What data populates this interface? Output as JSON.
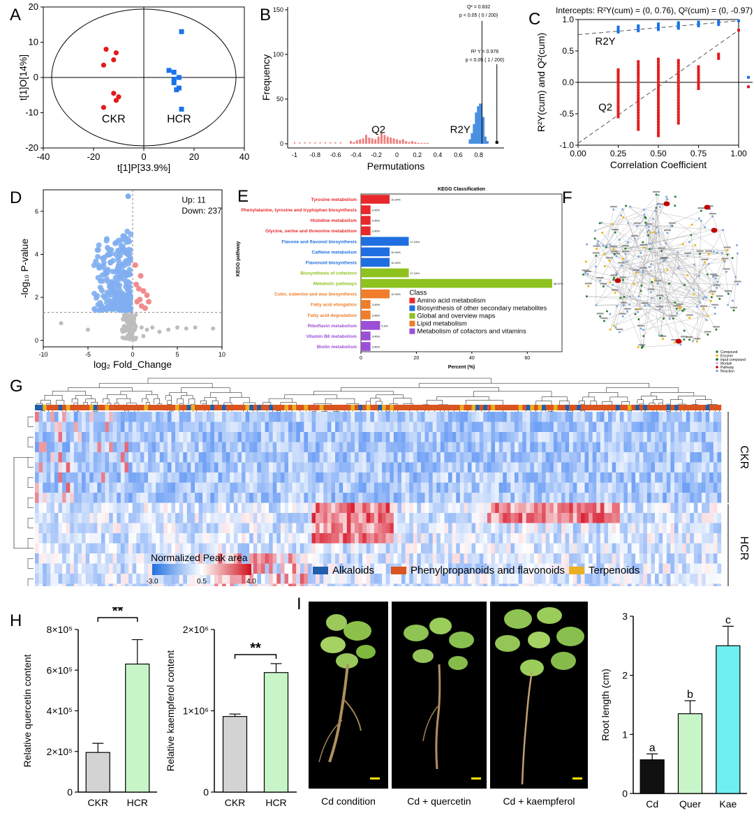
{
  "panels": {
    "A": "A",
    "B": "B",
    "C": "C",
    "D": "D",
    "E": "E",
    "F": "F",
    "G": "G",
    "H": "H",
    "I": "I"
  },
  "chart_data": [
    {
      "id": "A",
      "type": "scatter",
      "xlabel": "t[1]P[33.9%]",
      "ylabel": "t[1]O[14%]",
      "xlim": [
        -40,
        40
      ],
      "ylim": [
        -20,
        20
      ],
      "xticks": [
        "-40",
        "-20",
        "0",
        "20",
        "40"
      ],
      "yticks": [
        "20",
        "10",
        "0",
        "-10",
        "-20"
      ],
      "series": [
        {
          "name": "CKR",
          "color": "#e31a1c",
          "marker": "circle",
          "points": [
            [
              -15,
              8
            ],
            [
              -11,
              7
            ],
            [
              -12,
              5
            ],
            [
              -16,
              3.5
            ],
            [
              -12,
              -4.5
            ],
            [
              -11,
              -6.5
            ],
            [
              -10,
              -5.5
            ],
            [
              -16,
              -8.5
            ]
          ]
        },
        {
          "name": "HCR",
          "color": "#1a73e8",
          "marker": "square",
          "points": [
            [
              15,
              13
            ],
            [
              10,
              2
            ],
            [
              12,
              1.5
            ],
            [
              12,
              -0.5
            ],
            [
              14,
              0
            ],
            [
              12,
              -1.5
            ],
            [
              14,
              -3
            ],
            [
              13,
              -3.5
            ],
            [
              15,
              -9
            ]
          ]
        }
      ]
    },
    {
      "id": "B",
      "type": "bar",
      "xlabel": "Permutations",
      "ylabel": "Frequency",
      "xlim": [
        -1.05,
        1.0
      ],
      "ylim": [
        0,
        150
      ],
      "xticks": [
        "-1",
        "-0.8",
        "-0.6",
        "-0.4",
        "-0.2",
        "0",
        "0.2",
        "0.4",
        "0.6",
        "0.8"
      ],
      "yticks": [
        "150",
        "100",
        "50",
        "0"
      ],
      "annotations": [
        "Q2",
        "R2Y",
        "Q² = 0.832",
        "p < 0.05 ( 0 / 200)",
        "R² Y = 0.978",
        "p < 0.05 ( 1 / 200)"
      ],
      "q2_hist": {
        "color": "#f08080",
        "x": [
          -0.45,
          -0.42,
          -0.39,
          -0.36,
          -0.33,
          -0.3,
          -0.27,
          -0.24,
          -0.21,
          -0.18,
          -0.15,
          -0.12,
          -0.09,
          -0.06,
          -0.03,
          0,
          0.03,
          0.06,
          0.09,
          0.12,
          0.15,
          0.18,
          0.21,
          0.24,
          0.27,
          0.3
        ],
        "values": [
          3,
          2,
          4,
          5,
          6,
          10,
          7,
          6,
          5,
          8,
          12,
          10,
          8,
          7,
          6,
          5,
          4,
          5,
          3,
          2,
          3,
          2,
          1,
          1,
          1,
          1
        ]
      },
      "r2y_hist": {
        "color": "#4a90e2",
        "x": [
          0.72,
          0.74,
          0.76,
          0.78,
          0.8,
          0.82,
          0.84,
          0.86,
          0.88
        ],
        "values": [
          5,
          12,
          22,
          35,
          42,
          45,
          30,
          8,
          3
        ]
      },
      "q2_observed": 0.832,
      "r2y_observed": 0.978
    },
    {
      "id": "C",
      "type": "scatter",
      "title": "Intercepts: R²Y(cum) = (0, 0.76), Q²(cum) = (0, -0.97)",
      "xlabel": "Correlation Coefficient",
      "ylabel": "R²Y(cum) and Q²(cum)",
      "xlim": [
        0,
        1
      ],
      "ylim": [
        -1,
        1
      ],
      "xticks": [
        "0.00",
        "0.25",
        "0.50",
        "0.75",
        "1.00"
      ],
      "yticks": [
        "1.0",
        "0.5",
        "0.0",
        "-0.5",
        "-1.0"
      ],
      "annotations": [
        "R2Y",
        "Q2"
      ],
      "r2y_intercept": 0.76,
      "q2_intercept": -0.97,
      "r2y_points": {
        "color": "#1a73e8",
        "x": [
          0.25,
          0.375,
          0.5,
          0.625,
          0.75,
          0.875,
          1.0
        ],
        "lo": [
          0.8,
          0.82,
          0.84,
          0.86,
          0.9,
          0.92,
          0.98
        ],
        "hi": [
          0.88,
          0.9,
          0.93,
          0.95,
          0.96,
          0.97,
          0.98
        ]
      },
      "q2_points": {
        "color": "#e31a1c",
        "x": [
          0.25,
          0.375,
          0.5,
          0.625,
          0.75,
          0.875,
          1.0
        ],
        "lo": [
          -0.55,
          -0.75,
          -0.85,
          -0.65,
          -0.1,
          0.38,
          0.83
        ],
        "hi": [
          0.2,
          0.33,
          0.37,
          0.35,
          0.25,
          0.45,
          0.83
        ]
      }
    },
    {
      "id": "D",
      "type": "scatter",
      "xlabel": "log₂ Fold_Change",
      "ylabel": "-log₁₀ P-value",
      "xlim": [
        -10,
        10
      ],
      "ylim": [
        -0.3,
        7
      ],
      "xticks": [
        "-10",
        "-5",
        "0",
        "5",
        "10"
      ],
      "yticks": [
        "0",
        "2",
        "4",
        "6"
      ],
      "legend": [
        "Up: 11",
        "Down: 237"
      ],
      "threshold_y": 1.3
    },
    {
      "id": "E",
      "type": "bar",
      "title": "KEGG Classification",
      "xlabel": "Percent (%)",
      "ylabel": "KEGG pathway",
      "xticks": [
        "0",
        "20",
        "40",
        "60"
      ],
      "xlim": [
        0,
        70
      ],
      "categories": [
        "Tyrosine metabolism",
        "Phenylalanine, tyrosine and tryptophan biosynthesis",
        "Histidine metabolism",
        "Glycine, serine and threonine metabolism",
        "Flavone and flavonol biosynthesis",
        "Caffeine metabolism",
        "Flavonoid biosynthesis",
        "Biosynthesis of cofactors",
        "Metabolic pathways",
        "Cutin, suberine and wax biosynthesis",
        "Fatty acid elongation",
        "Fatty acid degradation",
        "Riboflavin metabolism",
        "Vitamin B6 metabolism",
        "Biotin metabolism"
      ],
      "values": [
        10.34,
        3.45,
        3.45,
        3.45,
        17.24,
        10.34,
        10.34,
        17.24,
        68.97,
        10.34,
        3.45,
        3.45,
        6.9,
        3.45,
        3.45
      ],
      "value_labels": [
        "10.34%",
        "3.45%",
        "3.45%",
        "3.45%",
        "17.24%",
        "10.34%",
        "10.34%",
        "17.24%",
        "68.97%",
        "10.34%",
        "3.45%",
        "3.45%",
        "6.9%",
        "3.45%",
        "3.45%"
      ],
      "classes": [
        "amino",
        "amino",
        "amino",
        "amino",
        "secondary",
        "secondary",
        "secondary",
        "global",
        "global",
        "lipid",
        "lipid",
        "lipid",
        "cofactor",
        "cofactor",
        "cofactor"
      ],
      "legend_title": "Class",
      "legend": [
        {
          "key": "amino",
          "label": "Amino acid metabolism",
          "color": "#e8282b"
        },
        {
          "key": "secondary",
          "label": "Biosynthesis of other secondary metabolites",
          "color": "#1f6fe0"
        },
        {
          "key": "global",
          "label": "Global and overview maps",
          "color": "#8dc21f"
        },
        {
          "key": "lipid",
          "label": "Lipid metabolism",
          "color": "#ef7d2a"
        },
        {
          "key": "cofactor",
          "label": "Metabolism of cofactors and vitamins",
          "color": "#9b4fd6"
        }
      ]
    },
    {
      "id": "G",
      "type": "heatmap",
      "row_groups": [
        "CKR",
        "HCR"
      ],
      "colorbar_title": "Normalized Peak area",
      "colorbar_ticks": [
        "-3.0",
        "0.5",
        "4.0"
      ],
      "col_legend": [
        {
          "label": "Alkaloids",
          "color": "#1f5fad"
        },
        {
          "label": "Phenylpropanoids and flavonoids",
          "color": "#d9541e"
        },
        {
          "label": "Terpenoids",
          "color": "#eab023"
        }
      ]
    },
    {
      "id": "H1",
      "type": "bar",
      "ylabel": "Relative quercetin content",
      "categories": [
        "CKR",
        "HCR"
      ],
      "values": [
        195000,
        630000
      ],
      "errors": [
        45000,
        120000
      ],
      "colors": [
        "#d3d3d3",
        "#c8f5c8"
      ],
      "ylim": [
        0,
        800000
      ],
      "yticks": [
        "8×10⁵",
        "6×10⁵",
        "4×10⁵",
        "2×10⁵",
        "0"
      ],
      "significance": "**"
    },
    {
      "id": "H2",
      "type": "bar",
      "ylabel": "Relative kaempferol content",
      "categories": [
        "CKR",
        "HCR"
      ],
      "values": [
        930000,
        1470000
      ],
      "errors": [
        30000,
        110000
      ],
      "colors": [
        "#d3d3d3",
        "#c8f5c8"
      ],
      "ylim": [
        0,
        2000000
      ],
      "yticks": [
        "2×10⁶",
        "1×10⁶",
        "0"
      ],
      "significance": "**"
    },
    {
      "id": "I",
      "type": "bar",
      "ylabel": "Root length (cm)",
      "categories": [
        "Cd",
        "Quer",
        "Kae"
      ],
      "values": [
        0.57,
        1.35,
        2.5
      ],
      "errors": [
        0.1,
        0.22,
        0.33
      ],
      "letters": [
        "a",
        "b",
        "c"
      ],
      "colors": [
        "#111111",
        "#c8f5c8",
        "#6ff0f0"
      ],
      "ylim": [
        0,
        3
      ],
      "yticks": [
        "3",
        "2",
        "1",
        "0"
      ]
    }
  ],
  "network": {
    "legend": [
      {
        "label": "Compound",
        "color": "#2e7d32"
      },
      {
        "label": "Enzyme",
        "color": "#f0b400"
      },
      {
        "label": "Input compound",
        "color": "#1b5e20"
      },
      {
        "label": "Module",
        "color": "#e0a0e0"
      },
      {
        "label": "Pathway",
        "color": "#c00000"
      },
      {
        "label": "Reaction",
        "color": "#7fa7d9"
      }
    ]
  },
  "photos": {
    "captions": [
      "Cd condition",
      "Cd + quercetin",
      "Cd + kaempferol"
    ]
  }
}
